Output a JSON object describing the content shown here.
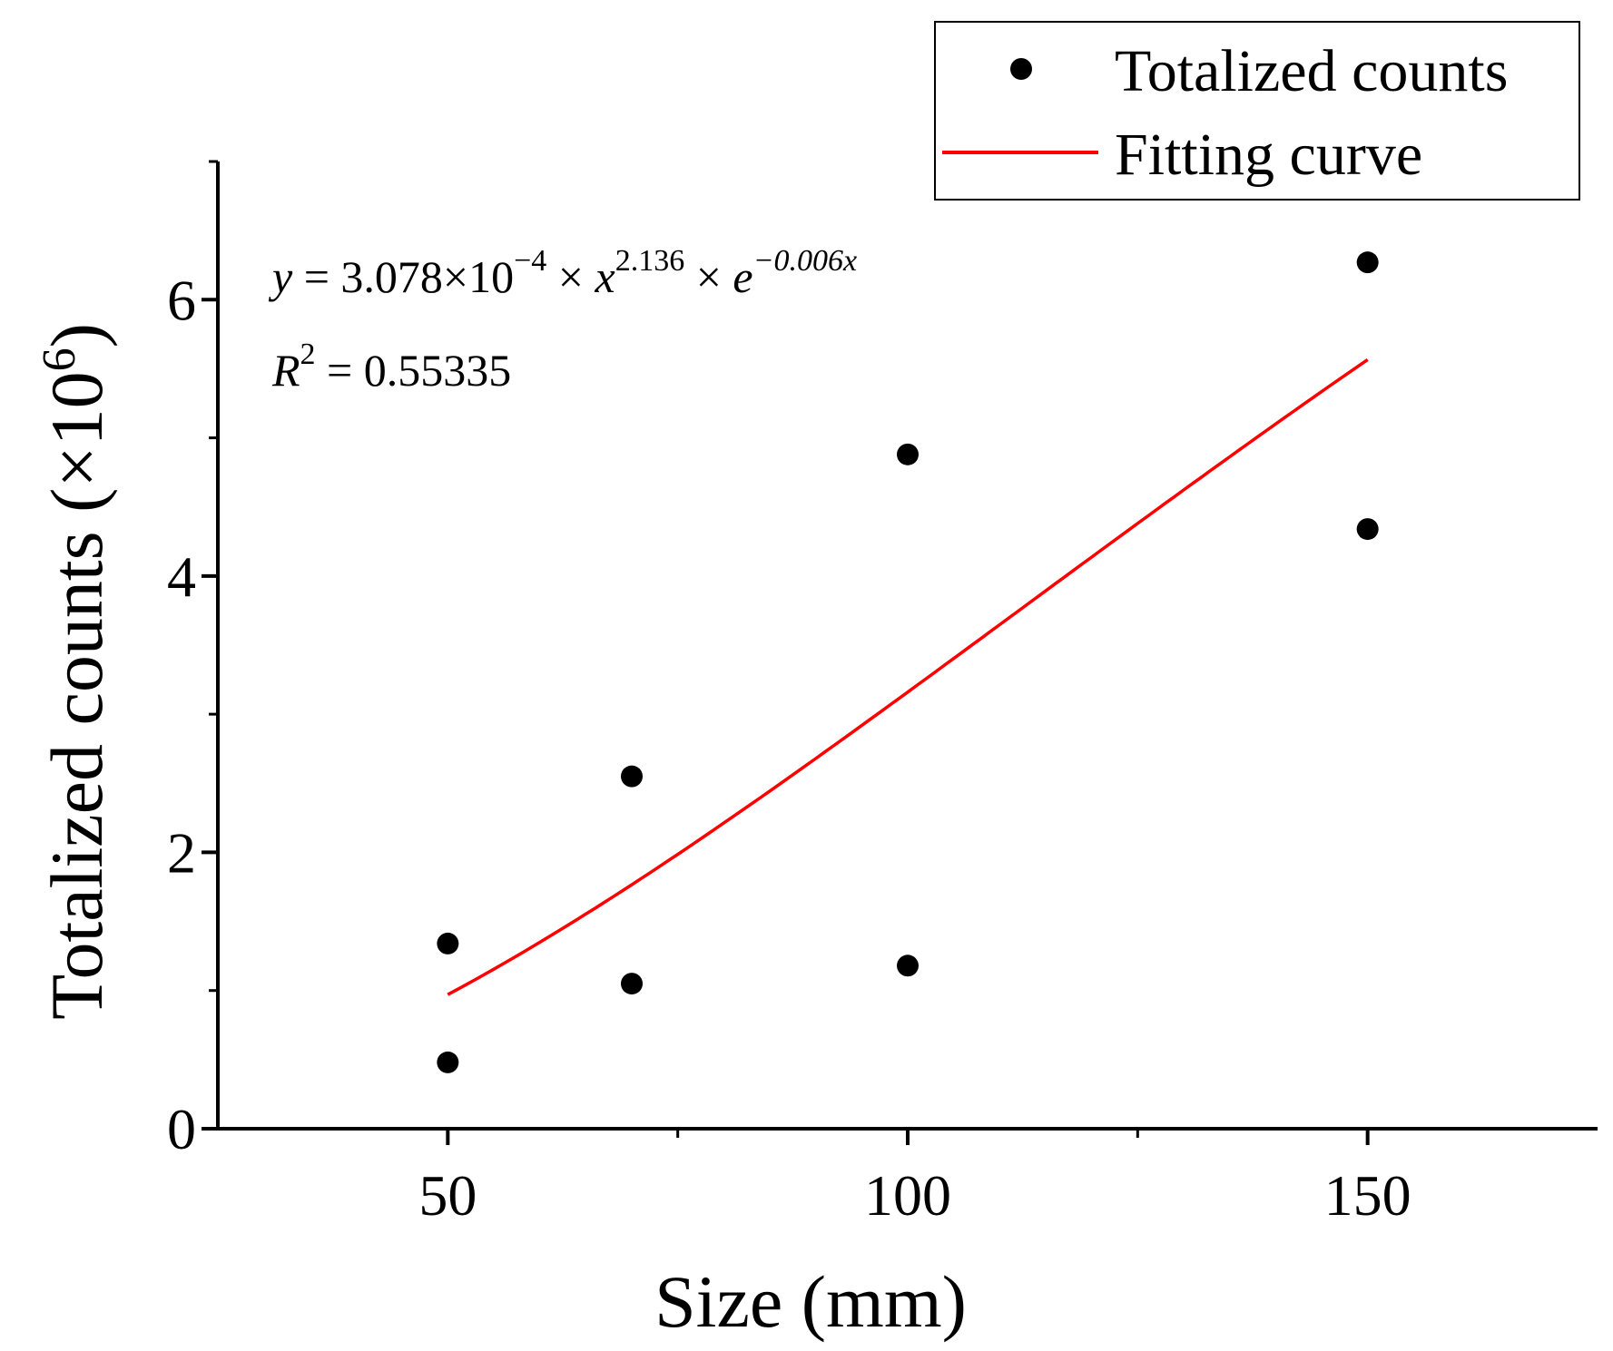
{
  "chart_data": {
    "type": "scatter",
    "title": "",
    "xlabel": "Size (mm)",
    "ylabel": "Totalized counts (×10",
    "ylabel_sup": "6",
    "ylabel_close": ")",
    "xlim": [
      25,
      175
    ],
    "ylim": [
      0,
      7
    ],
    "x_major_ticks": [
      50,
      100,
      150
    ],
    "x_minor_ticks": [
      75,
      125
    ],
    "y_ticks": [
      0,
      2,
      4,
      6
    ],
    "y_minor_ticks": [
      1,
      3,
      5,
      7
    ],
    "series": [
      {
        "name": "Totalized counts",
        "kind": "scatter",
        "color": "#000000",
        "points": [
          {
            "x": 50,
            "y": 1.34
          },
          {
            "x": 50,
            "y": 0.48
          },
          {
            "x": 70,
            "y": 2.55
          },
          {
            "x": 70,
            "y": 1.05
          },
          {
            "x": 100,
            "y": 4.88
          },
          {
            "x": 100,
            "y": 1.18
          },
          {
            "x": 150,
            "y": 6.27
          },
          {
            "x": 150,
            "y": 4.34
          }
        ]
      },
      {
        "name": "Fitting curve",
        "kind": "line",
        "color": "#ff0000",
        "function": {
          "a": 0.0003078,
          "b": 2.136,
          "c": -0.006
        },
        "x_range": [
          50,
          150
        ]
      }
    ],
    "annotation": {
      "eq_y": "y",
      "eq_eq": " = 3.078×10",
      "eq_exp1": "−4",
      "eq_times1": " × ",
      "eq_x": "x",
      "eq_exp2": "2.136",
      "eq_times2": " × ",
      "eq_e": "e",
      "eq_exp3": "−0.006x",
      "r2_R": "R",
      "r2_sup": "2",
      "r2_val": " = 0.55335"
    },
    "legend_position": "top-right"
  }
}
